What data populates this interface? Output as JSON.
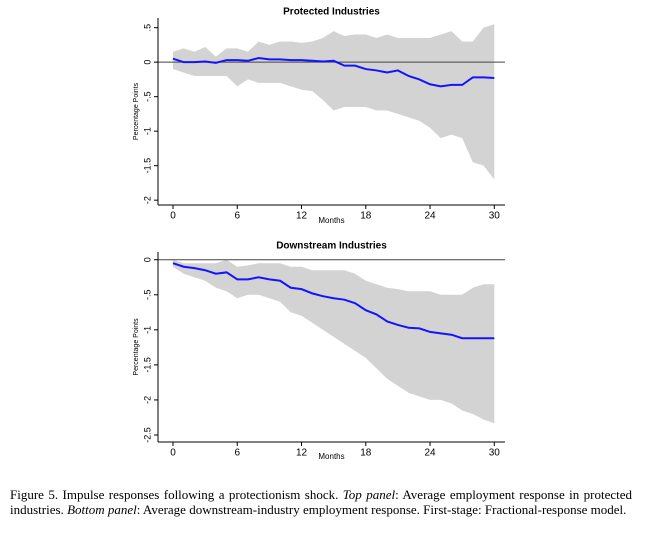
{
  "chart_data": [
    {
      "type": "line",
      "title": "Protected Industries",
      "x_label": "Months",
      "y_label": "Percentage Points",
      "x": [
        0,
        1,
        2,
        3,
        4,
        5,
        6,
        7,
        8,
        9,
        10,
        11,
        12,
        13,
        14,
        15,
        16,
        17,
        18,
        19,
        20,
        21,
        22,
        23,
        24,
        25,
        26,
        27,
        28,
        29,
        30
      ],
      "values": [
        0.05,
        0.0,
        0.0,
        0.01,
        -0.01,
        0.03,
        0.03,
        0.02,
        0.06,
        0.04,
        0.04,
        0.03,
        0.03,
        0.02,
        0.01,
        0.02,
        -0.05,
        -0.05,
        -0.1,
        -0.12,
        -0.15,
        -0.12,
        -0.2,
        -0.25,
        -0.32,
        -0.35,
        -0.33,
        -0.33,
        -0.22,
        -0.22,
        -0.23
      ],
      "band_upper": [
        0.15,
        0.2,
        0.15,
        0.22,
        0.08,
        0.2,
        0.2,
        0.15,
        0.3,
        0.25,
        0.3,
        0.3,
        0.28,
        0.3,
        0.35,
        0.45,
        0.38,
        0.4,
        0.4,
        0.35,
        0.4,
        0.35,
        0.35,
        0.35,
        0.35,
        0.4,
        0.45,
        0.3,
        0.3,
        0.5,
        0.55
      ],
      "band_lower": [
        -0.1,
        -0.15,
        -0.2,
        -0.2,
        -0.2,
        -0.2,
        -0.35,
        -0.25,
        -0.3,
        -0.3,
        -0.3,
        -0.35,
        -0.4,
        -0.42,
        -0.55,
        -0.7,
        -0.65,
        -0.65,
        -0.65,
        -0.7,
        -0.7,
        -0.75,
        -0.8,
        -0.85,
        -0.95,
        -1.1,
        -1.05,
        -1.1,
        -1.45,
        -1.5,
        -1.7
      ],
      "color": "#1414ff",
      "band_color": "#d3d3d3",
      "reference_line": 0,
      "xlim": [
        -1.4,
        31
      ],
      "ylim": [
        -2.07,
        0.64
      ],
      "xticks": [
        0,
        6,
        12,
        18,
        24,
        30
      ],
      "yticks": [
        {
          "value": 0.5,
          "label": ".5"
        },
        0,
        {
          "value": -0.5,
          "label": "-.5"
        },
        -1,
        -1.5,
        -2
      ]
    },
    {
      "type": "line",
      "title": "Downstream Industries",
      "x_label": "Months",
      "y_label": "Percentage Points",
      "x": [
        0,
        1,
        2,
        3,
        4,
        5,
        6,
        7,
        8,
        9,
        10,
        11,
        12,
        13,
        14,
        15,
        16,
        17,
        18,
        19,
        20,
        21,
        22,
        23,
        24,
        25,
        26,
        27,
        28,
        29,
        30
      ],
      "values": [
        -0.05,
        -0.1,
        -0.12,
        -0.15,
        -0.2,
        -0.18,
        -0.28,
        -0.28,
        -0.25,
        -0.28,
        -0.3,
        -0.4,
        -0.42,
        -0.48,
        -0.52,
        -0.55,
        -0.57,
        -0.62,
        -0.72,
        -0.78,
        -0.88,
        -0.93,
        -0.97,
        -0.98,
        -1.03,
        -1.05,
        -1.07,
        -1.12,
        -1.12,
        -1.12,
        -1.12
      ],
      "band_upper": [
        0.0,
        -0.05,
        -0.05,
        -0.05,
        -0.05,
        0.0,
        -0.1,
        -0.08,
        -0.05,
        -0.05,
        -0.05,
        -0.1,
        -0.1,
        -0.15,
        -0.15,
        -0.15,
        -0.15,
        -0.2,
        -0.3,
        -0.35,
        -0.4,
        -0.42,
        -0.45,
        -0.45,
        -0.45,
        -0.5,
        -0.5,
        -0.5,
        -0.4,
        -0.35,
        -0.35
      ],
      "band_lower": [
        -0.1,
        -0.2,
        -0.25,
        -0.3,
        -0.4,
        -0.45,
        -0.55,
        -0.5,
        -0.5,
        -0.55,
        -0.6,
        -0.75,
        -0.8,
        -0.9,
        -1.0,
        -1.1,
        -1.2,
        -1.3,
        -1.4,
        -1.55,
        -1.7,
        -1.8,
        -1.9,
        -1.95,
        -2.0,
        -2.0,
        -2.05,
        -2.15,
        -2.2,
        -2.28,
        -2.33
      ],
      "color": "#1414ff",
      "band_color": "#d3d3d3",
      "reference_line": 0,
      "xlim": [
        -1.4,
        31
      ],
      "ylim": [
        -2.6,
        0.11
      ],
      "xticks": [
        0,
        6,
        12,
        18,
        24,
        30
      ],
      "yticks": [
        0,
        {
          "value": -0.5,
          "label": "-.5"
        },
        -1,
        -1.5,
        -2,
        {
          "value": -2.5,
          "label": "-2.5"
        }
      ]
    }
  ],
  "caption": {
    "lead": "Figure 5.  Impulse responses following a protectionism shock.  ",
    "top_label": "Top panel",
    "top_text": ": Average employment response in protected industries.  ",
    "bottom_label": "Bottom panel",
    "bottom_text": ": Average downstream-industry employment response.  First-stage: Fractional-response model."
  }
}
